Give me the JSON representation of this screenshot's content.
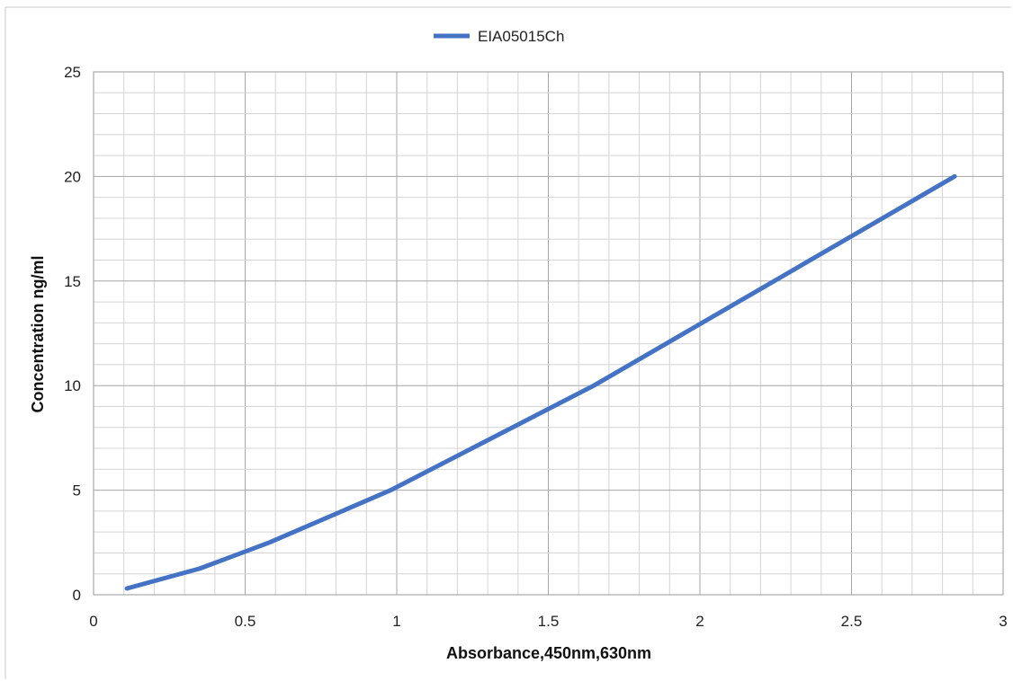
{
  "chart_data": {
    "type": "line",
    "title": "",
    "xlabel": "Absorbance,450nm,630nm",
    "ylabel": "Concentration ng/ml",
    "xlim": [
      0,
      3
    ],
    "ylim": [
      0,
      25
    ],
    "x_ticks": [
      0,
      0.5,
      1,
      1.5,
      2,
      2.5,
      3
    ],
    "x_tick_labels": [
      "0",
      "0.5",
      "1",
      "1.5",
      "2",
      "2.5",
      "3"
    ],
    "y_ticks": [
      0,
      5,
      10,
      15,
      20,
      25
    ],
    "y_tick_labels": [
      "0",
      "5",
      "10",
      "15",
      "20",
      "25"
    ],
    "grid": true,
    "minor_grid": true,
    "legend_position": "top-center",
    "series": [
      {
        "name": "EIA05015Ch",
        "color": "#4472C4",
        "x": [
          0.11,
          0.35,
          0.58,
          0.98,
          1.65,
          2.84
        ],
        "y": [
          0.3,
          1.25,
          2.5,
          5.0,
          10.0,
          20.0
        ]
      }
    ]
  }
}
